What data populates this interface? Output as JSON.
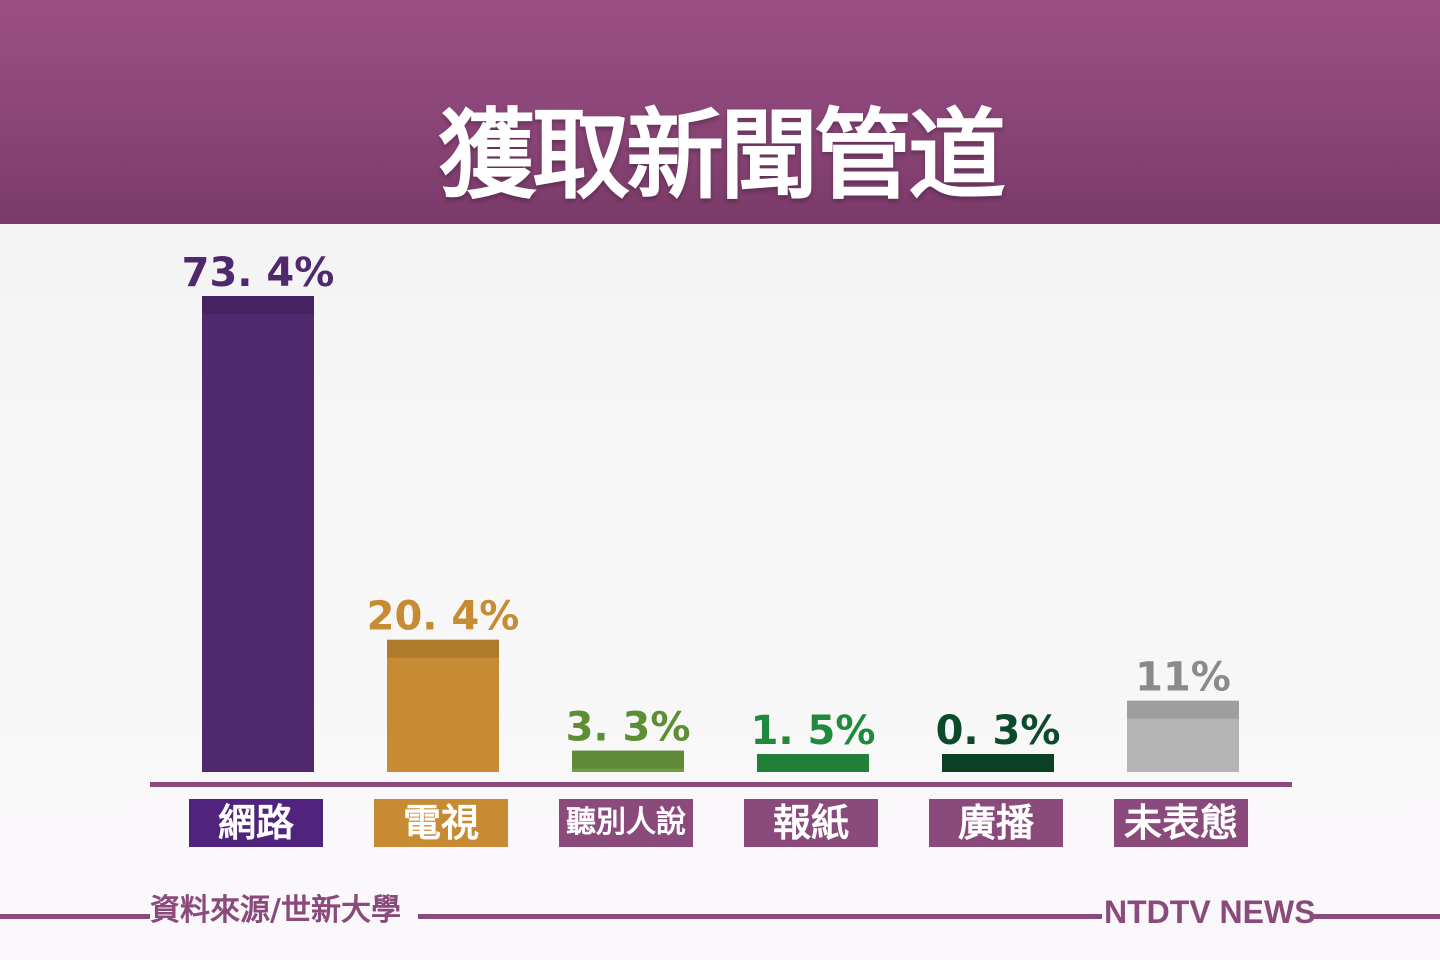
{
  "title": "獲取新聞管道",
  "source": "資料來源/世新大學",
  "brand": "NTDTV NEWS",
  "chart_data": {
    "type": "bar",
    "title": "獲取新聞管道",
    "xlabel": "",
    "ylabel": "",
    "ylim": [
      0,
      80
    ],
    "grid": false,
    "categories": [
      "網路",
      "電視",
      "聽別人說",
      "報紙",
      "廣播",
      "未表態"
    ],
    "values": [
      73.4,
      20.4,
      3.3,
      1.5,
      0.3,
      11
    ],
    "value_labels": [
      "73. 4%",
      "20. 4%",
      "3. 3%",
      "1. 5%",
      "0. 3%",
      "11%"
    ],
    "bar_colors": [
      "#50286e",
      "#c78c33",
      "#6b9e40",
      "#26913f",
      "#0c4a2b",
      "#b4b4b4"
    ],
    "label_colors": [
      "#50286e",
      "#c78c33",
      "#5c8f34",
      "#1f8a3c",
      "#0c4a2b",
      "#8a8a8a"
    ],
    "category_box_colors": [
      "#50247c",
      "#c78c33",
      "#8a4a7c",
      "#8a4a7c",
      "#8a4a7c",
      "#8a4a7c"
    ],
    "axis_color": "#8a4a7c"
  }
}
